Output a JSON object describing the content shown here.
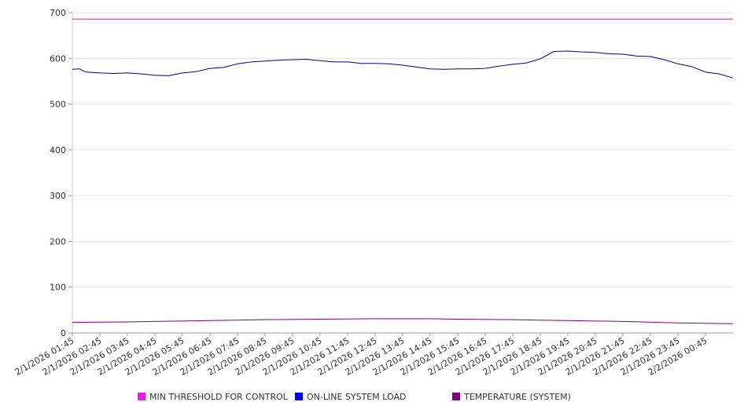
{
  "chart_data": {
    "type": "line",
    "title": "",
    "xlabel": "",
    "ylabel": "",
    "ylim": [
      0,
      700
    ],
    "y_ticks": [
      0,
      100,
      200,
      300,
      400,
      500,
      600,
      700
    ],
    "grid": true,
    "legend_position": "bottom",
    "x_tick_labels": [
      "2/1/2026 01:45",
      "2/1/2026 02:45",
      "2/1/2026 03:45",
      "2/1/2026 04:45",
      "2/1/2026 05:45",
      "2/1/2026 06:45",
      "2/1/2026 07:45",
      "2/1/2026 08:45",
      "2/1/2026 09:45",
      "2/1/2026 10:45",
      "2/1/2026 11:45",
      "2/1/2026 12:45",
      "2/1/2026 13:45",
      "2/1/2026 14:45",
      "2/1/2026 15:45",
      "2/1/2026 16:45",
      "2/1/2026 17:45",
      "2/1/2026 18:45",
      "2/1/2026 19:45",
      "2/1/2026 20:45",
      "2/1/2026 21:45",
      "2/1/2026 22:45",
      "2/1/2026 23:45",
      "2/2/2026 00:45"
    ],
    "x_start": "2/1/2026 01:45",
    "x_end": "2/2/2026 01:45",
    "series": [
      {
        "name": "MIN THRESHOLD FOR CONTROL",
        "color": "#e020e0",
        "line_color": "#b030b0",
        "x": [
          "2/1/2026 01:45",
          "2/2/2026 01:45"
        ],
        "values": [
          686,
          686
        ]
      },
      {
        "name": "ON-LINE SYSTEM LOAD",
        "color": "#0000ff",
        "line_color": "#00008b",
        "x": [
          "2/1/2026 01:45",
          "2/1/2026 02:00",
          "2/1/2026 02:15",
          "2/1/2026 02:45",
          "2/1/2026 03:15",
          "2/1/2026 03:45",
          "2/1/2026 04:15",
          "2/1/2026 04:45",
          "2/1/2026 05:15",
          "2/1/2026 05:45",
          "2/1/2026 06:15",
          "2/1/2026 06:45",
          "2/1/2026 07:15",
          "2/1/2026 07:45",
          "2/1/2026 08:15",
          "2/1/2026 08:45",
          "2/1/2026 09:15",
          "2/1/2026 09:45",
          "2/1/2026 10:15",
          "2/1/2026 10:45",
          "2/1/2026 11:15",
          "2/1/2026 11:45",
          "2/1/2026 12:15",
          "2/1/2026 12:45",
          "2/1/2026 13:15",
          "2/1/2026 13:45",
          "2/1/2026 14:15",
          "2/1/2026 14:45",
          "2/1/2026 15:15",
          "2/1/2026 15:45",
          "2/1/2026 16:15",
          "2/1/2026 16:45",
          "2/1/2026 17:15",
          "2/1/2026 17:45",
          "2/1/2026 18:15",
          "2/1/2026 18:45",
          "2/1/2026 19:15",
          "2/1/2026 19:45",
          "2/1/2026 20:15",
          "2/1/2026 20:45",
          "2/1/2026 21:15",
          "2/1/2026 21:45",
          "2/1/2026 22:15",
          "2/1/2026 22:45",
          "2/1/2026 23:15",
          "2/1/2026 23:45",
          "2/2/2026 00:15",
          "2/2/2026 00:45",
          "2/2/2026 01:15",
          "2/2/2026 01:45"
        ],
        "values": [
          576,
          577,
          570,
          568,
          567,
          568,
          566,
          563,
          562,
          568,
          571,
          578,
          580,
          588,
          592,
          594,
          596,
          597,
          598,
          595,
          592,
          592,
          589,
          589,
          588,
          585,
          581,
          577,
          576,
          577,
          577,
          578,
          583,
          587,
          590,
          599,
          615,
          616,
          614,
          613,
          610,
          609,
          605,
          604,
          597,
          588,
          582,
          570,
          566,
          557
        ]
      },
      {
        "name": "TEMPERATURE (SYSTEM)",
        "color": "#800080",
        "line_color": "#800080",
        "x": [
          "2/1/2026 01:45",
          "2/1/2026 03:45",
          "2/1/2026 04:45",
          "2/1/2026 06:45",
          "2/1/2026 08:45",
          "2/1/2026 10:45",
          "2/1/2026 12:45",
          "2/1/2026 14:45",
          "2/1/2026 15:45",
          "2/1/2026 17:45",
          "2/1/2026 18:45",
          "2/1/2026 19:45",
          "2/1/2026 21:45",
          "2/1/2026 23:45",
          "2/2/2026 01:45"
        ],
        "values": [
          23,
          24,
          25,
          27,
          29,
          30,
          31,
          31,
          30,
          29,
          28,
          27,
          25,
          22,
          20
        ]
      }
    ]
  }
}
